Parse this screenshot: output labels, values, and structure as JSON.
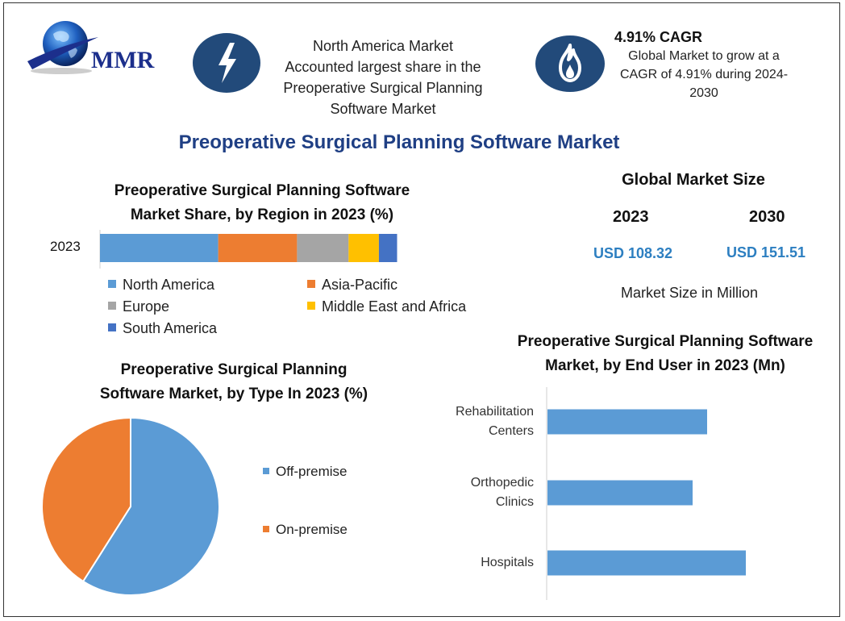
{
  "logo": {
    "text": "MMR"
  },
  "highlights": [
    {
      "icon": "lightning-icon",
      "lines": [
        "North America Market",
        "Accounted largest share in the",
        "Preoperative Surgical Planning",
        "Software Market"
      ]
    },
    {
      "icon": "flame-icon",
      "heading": "4.91% CAGR",
      "lines": [
        "Global Market to grow at a",
        "CAGR of 4.91% during 2024-",
        "2030"
      ]
    }
  ],
  "main_title": "Preoperative Surgical Planning Software Market",
  "market_size": {
    "title": "Global Market Size",
    "years": [
      "2023",
      "2030"
    ],
    "values": [
      "USD 108.32",
      "USD 151.51"
    ],
    "unit_note": "Market Size in Million"
  },
  "colors": {
    "blue": "#5b9bd5",
    "orange": "#ed7d31",
    "gray": "#a5a5a5",
    "yellow": "#ffc000",
    "darkblue": "#4472c4",
    "title_blue": "#1f3f84",
    "usd_blue": "#2d7fc1",
    "icon_navy": "#224a7a"
  },
  "chart_data": [
    {
      "type": "bar",
      "stacked": true,
      "orientation": "horizontal",
      "title": [
        "Preoperative Surgical Planning Software",
        "Market Share, by Region in 2023 (%)"
      ],
      "categories": [
        "2023"
      ],
      "series": [
        {
          "name": "North America",
          "values": [
            39
          ],
          "color": "#5b9bd5"
        },
        {
          "name": "Asia-Pacific",
          "values": [
            26
          ],
          "color": "#ed7d31"
        },
        {
          "name": "Europe",
          "values": [
            17
          ],
          "color": "#a5a5a5"
        },
        {
          "name": "Middle East and Africa",
          "values": [
            10
          ],
          "color": "#ffc000"
        },
        {
          "name": "South America",
          "values": [
            6
          ],
          "color": "#4472c4"
        }
      ],
      "xlim": [
        0,
        100
      ],
      "grid": false,
      "legend": "bottom"
    },
    {
      "type": "pie",
      "title": [
        "Preoperative Surgical Planning",
        "Software Market, by Type In 2023 (%)"
      ],
      "slices": [
        {
          "name": "Off-premise",
          "value": 59,
          "color": "#5b9bd5"
        },
        {
          "name": "On-premise",
          "value": 41,
          "color": "#ed7d31"
        }
      ],
      "legend": "right"
    },
    {
      "type": "bar",
      "orientation": "horizontal",
      "title": [
        "Preoperative Surgical Planning Software",
        "Market, by End User in 2023 (Mn)"
      ],
      "categories": [
        [
          "Rehabilitation",
          "Centers"
        ],
        [
          "Orthopedic",
          "Clinics"
        ],
        [
          "Hospitals"
        ]
      ],
      "values": [
        33,
        30,
        41
      ],
      "xlim": [
        0,
        55
      ],
      "color": "#5b9bd5",
      "grid": false
    }
  ]
}
